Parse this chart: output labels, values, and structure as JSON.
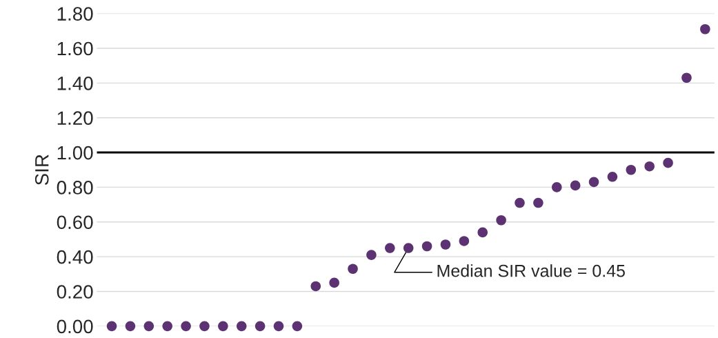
{
  "chart_data": {
    "type": "scatter",
    "ylabel": "SIR",
    "categories": [
      null,
      null,
      null,
      null,
      null,
      null,
      null,
      null,
      null,
      null,
      null,
      null,
      null,
      null,
      null,
      null,
      null,
      null,
      null,
      null,
      null,
      null,
      null,
      null,
      null,
      null,
      null,
      null,
      null,
      null,
      null,
      null,
      null
    ],
    "series": [
      {
        "color": "#5c3272",
        "values": [
          0,
          0,
          0,
          0,
          0,
          0,
          0,
          0,
          0,
          0,
          0,
          0.23,
          0.25,
          0.33,
          0.41,
          0.45,
          0.45,
          0.46,
          0.47,
          0.49,
          0.54,
          0.61,
          0.71,
          0.71,
          0.8,
          0.81,
          0.83,
          0.86,
          0.9,
          0.92,
          0.94,
          1.43,
          1.71
        ]
      }
    ],
    "ylim": [
      0,
      1.8
    ],
    "yticks": [
      {
        "value": 0,
        "label": "0.00"
      },
      {
        "value": 0.2,
        "label": "0.20"
      },
      {
        "value": 0.4,
        "label": "0.40"
      },
      {
        "value": 0.6,
        "label": "0.60"
      },
      {
        "value": 0.8,
        "label": "0.80"
      },
      {
        "value": 1.0,
        "label": "1.00"
      },
      {
        "value": 1.2,
        "label": "1.20"
      },
      {
        "value": 1.4,
        "label": "1.40"
      },
      {
        "value": 1.6,
        "label": "1.60"
      },
      {
        "value": 1.8,
        "label": "1.80"
      }
    ],
    "grid": "y",
    "marker": "circle",
    "ref_lines": [
      {
        "axis": "y",
        "value": 1.0,
        "color": "#000000"
      }
    ],
    "annotations": [
      "Median SIR value = 0.45"
    ]
  }
}
